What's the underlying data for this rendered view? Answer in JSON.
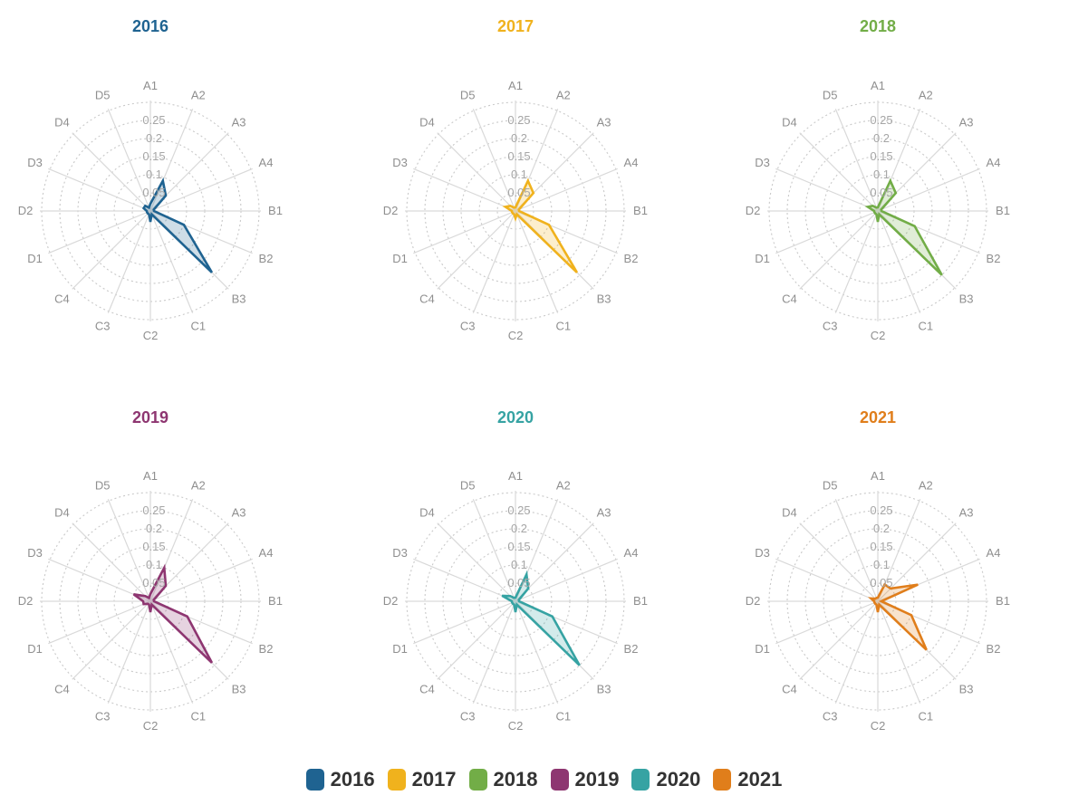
{
  "chart_data": {
    "type": "radar",
    "axes": [
      "A1",
      "A2",
      "A3",
      "A4",
      "B1",
      "B2",
      "B3",
      "C1",
      "C2",
      "C3",
      "C4",
      "D1",
      "D2",
      "D3",
      "D4",
      "D5"
    ],
    "rlim": [
      0,
      0.3
    ],
    "rticks": [
      "0.05",
      "0.1",
      "0.15",
      "0.2",
      "0.25"
    ],
    "grid": true,
    "charts": [
      {
        "title": "2016",
        "color": "#1f6391",
        "values": [
          0.02,
          0.09,
          0.06,
          0.01,
          0.01,
          0.1,
          0.24,
          0.01,
          0.03,
          0.01,
          0.01,
          0.01,
          0.01,
          0.02,
          0.02,
          0.01
        ]
      },
      {
        "title": "2017",
        "color": "#f0b21d",
        "values": [
          0.01,
          0.09,
          0.07,
          0.01,
          0.01,
          0.1,
          0.24,
          0.01,
          0.02,
          0.01,
          0.01,
          0.01,
          0.01,
          0.03,
          0.02,
          0.01
        ]
      },
      {
        "title": "2018",
        "color": "#72ad47",
        "values": [
          0.01,
          0.09,
          0.07,
          0.01,
          0.01,
          0.11,
          0.25,
          0.01,
          0.03,
          0.01,
          0.01,
          0.01,
          0.01,
          0.03,
          0.02,
          0.01
        ]
      },
      {
        "title": "2019",
        "color": "#8e3671",
        "values": [
          0.02,
          0.1,
          0.06,
          0.01,
          0.01,
          0.11,
          0.24,
          0.01,
          0.03,
          0.01,
          0.01,
          0.02,
          0.02,
          0.05,
          0.02,
          0.01
        ]
      },
      {
        "title": "2020",
        "color": "#36a3a3",
        "values": [
          0.01,
          0.08,
          0.05,
          0.01,
          0.01,
          0.11,
          0.25,
          0.01,
          0.03,
          0.01,
          0.01,
          0.01,
          0.01,
          0.04,
          0.02,
          0.01
        ]
      },
      {
        "title": "2021",
        "color": "#e07e1b",
        "values": [
          0.01,
          0.05,
          0.05,
          0.12,
          0.01,
          0.1,
          0.19,
          0.01,
          0.03,
          0.01,
          0.01,
          0.01,
          0.01,
          0.02,
          0.01,
          0.01
        ]
      }
    ]
  },
  "legend": {
    "items": [
      {
        "label": "2016",
        "color": "#1f6391"
      },
      {
        "label": "2017",
        "color": "#f0b21d"
      },
      {
        "label": "2018",
        "color": "#72ad47"
      },
      {
        "label": "2019",
        "color": "#8e3671"
      },
      {
        "label": "2020",
        "color": "#36a3a3"
      },
      {
        "label": "2021",
        "color": "#e07e1b"
      }
    ]
  }
}
